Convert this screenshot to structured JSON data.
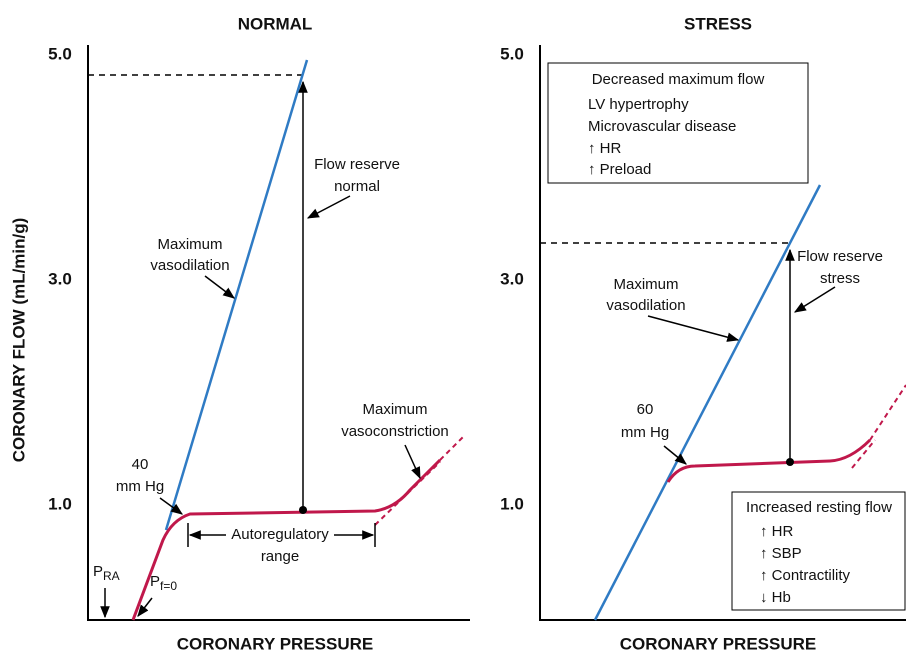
{
  "y_axis_label": "CORONARY FLOW (mL/min/g)",
  "panels": [
    {
      "title": "NORMAL",
      "x_axis_label": "CORONARY PRESSURE",
      "y_tick_labels": [
        "5.0",
        "3.0",
        "1.0"
      ],
      "flow_reserve": [
        "Flow reserve",
        "normal"
      ],
      "max_vasodilation": [
        "Maximum",
        "vasodilation"
      ],
      "max_vasoconstriction": [
        "Maximum",
        "vasoconstriction"
      ],
      "pressure_point": [
        "40",
        "mm Hg"
      ],
      "autoregulatory": [
        "Autoregulatory",
        "range"
      ],
      "p_ra": {
        "main": "P",
        "sub": "RA"
      },
      "p_f0": {
        "main": "P",
        "sub": "f=0"
      }
    },
    {
      "title": "STRESS",
      "x_axis_label": "CORONARY PRESSURE",
      "y_tick_labels": [
        "5.0",
        "3.0",
        "1.0"
      ],
      "flow_reserve": [
        "Flow reserve",
        "stress"
      ],
      "max_vasodilation": [
        "Maximum",
        "vasodilation"
      ],
      "pressure_point": [
        "60",
        "mm Hg"
      ],
      "box_decreased": {
        "title": "Decreased maximum flow",
        "items": [
          "LV hypertrophy",
          "Microvascular disease",
          "↑ HR",
          "↑ Preload"
        ]
      },
      "box_increased": {
        "title": "Increased resting flow",
        "items": [
          "↑ HR",
          "↑ SBP",
          "↑ Contractility",
          "↓ Hb"
        ]
      }
    }
  ]
}
